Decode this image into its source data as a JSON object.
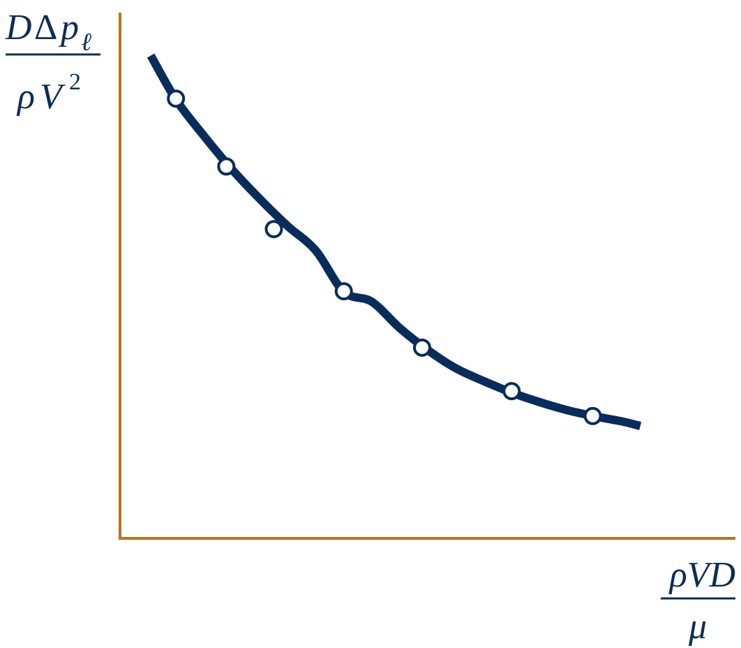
{
  "chart_data": {
    "type": "scatter",
    "x": [
      1.0,
      1.9,
      2.75,
      4.0,
      5.4,
      7.0,
      8.45
    ],
    "y": [
      9.2,
      7.78,
      6.47,
      5.17,
      3.99,
      3.08,
      2.56
    ],
    "fitted_curve": {
      "x": [
        0.55,
        1.0,
        1.5,
        2.0,
        2.5,
        3.0,
        3.5,
        4.0,
        4.5,
        5.0,
        5.5,
        6.0,
        6.5,
        7.0,
        7.5,
        8.0,
        8.5,
        9.0,
        9.3
      ],
      "y": [
        10.1,
        9.18,
        8.42,
        7.72,
        7.1,
        6.53,
        6.02,
        5.16,
        4.95,
        4.4,
        3.94,
        3.56,
        3.29,
        3.05,
        2.85,
        2.68,
        2.55,
        2.44,
        2.35
      ]
    },
    "xlim": [
      0,
      11
    ],
    "ylim": [
      0,
      11
    ],
    "grid": false,
    "ylabel": {
      "numerator": {
        "d": "D",
        "delta": "Δ",
        "p": "p",
        "subscript": "ℓ"
      },
      "denominator": {
        "rho": "ρ",
        "v": "V",
        "superscript": "2"
      }
    },
    "xlabel": {
      "numerator": "ρVD",
      "denominator": "μ"
    },
    "colors": {
      "axis": "#b8731f",
      "curve": "#082c5c",
      "marker_fill": "#ffffff",
      "text": "#0d2d55"
    }
  }
}
